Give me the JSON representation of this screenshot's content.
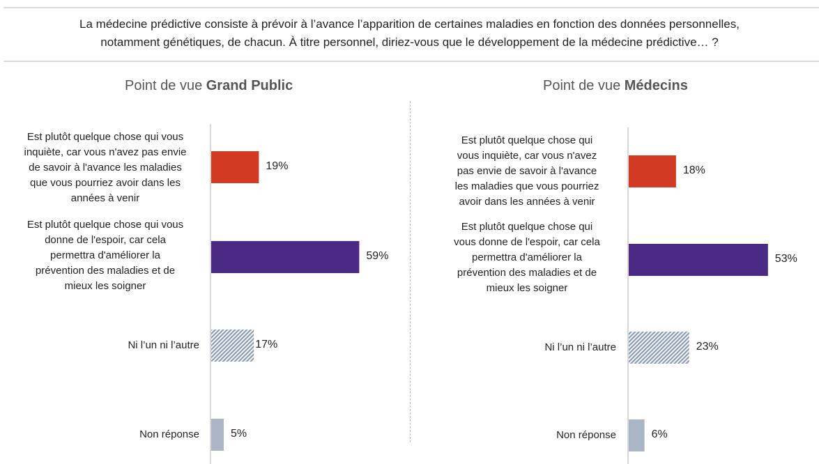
{
  "question": {
    "line1": "La médecine prédictive consiste à prévoir à l’avance l’apparition de certaines maladies en fonction des données personnelles,",
    "line2": "notamment génétiques, de chacun. À titre personnel, diriez-vous que le développement de la médecine prédictive… ?"
  },
  "panels": [
    {
      "title_prefix": "Point de vue ",
      "title_bold": "Grand Public"
    },
    {
      "title_prefix": "Point de vue ",
      "title_bold": "Médecins"
    }
  ],
  "colors": {
    "worry": "#d23a24",
    "hope": "#4b2a86",
    "neither": "#8a9ab4",
    "no_answer": "#aab6c6",
    "axis": "#d8d8d8"
  },
  "chart_data": [
    {
      "type": "bar",
      "orientation": "horizontal",
      "title": "Point de vue Grand Public",
      "categories": [
        "Est plutôt quelque chose qui vous inquiète, car vous n'avez pas envie de savoir à l'avance les maladies que vous pourriez avoir dans les années à venir",
        "Est plutôt quelque chose qui vous donne de l'espoir, car cela permettra d'améliorer la prévention des maladies et de mieux les soigner",
        "Ni l’un ni l’autre",
        "Non réponse"
      ],
      "category_lines": [
        [
          "Est plutôt quelque chose qui vous",
          "inquiète, car vous n'avez pas envie",
          "de savoir à l'avance les maladies",
          "que vous pourriez avoir dans les",
          "années à venir"
        ],
        [
          "Est plutôt quelque chose qui vous",
          "donne de l'espoir, car cela",
          "permettra d'améliorer la",
          "prévention des maladies et de",
          "mieux les soigner"
        ],
        [
          "Ni l’un ni l’autre"
        ],
        [
          "Non réponse"
        ]
      ],
      "values": [
        19,
        59,
        17,
        5
      ],
      "value_labels": [
        "19%",
        "59%",
        "17%",
        "5%"
      ],
      "patterns": [
        "solid",
        "solid",
        "hatched",
        "solid"
      ],
      "color_keys": [
        "worry",
        "hope",
        "neither",
        "no_answer"
      ],
      "unit": "%",
      "xlim": [
        0,
        100
      ],
      "grid": false,
      "legend": "none"
    },
    {
      "type": "bar",
      "orientation": "horizontal",
      "title": "Point de vue Médecins",
      "categories": [
        "Est plutôt quelque chose qui vous inquiète, car vous n'avez pas envie de savoir à l'avance les maladies que vous pourriez avoir dans les années à venir",
        "Est plutôt quelque chose qui vous donne de l'espoir, car cela permettra d'améliorer la prévention des maladies et de mieux les soigner",
        "Ni l’un ni l’autre",
        "Non réponse"
      ],
      "category_lines": [
        [
          "Est plutôt quelque chose qui",
          "vous inquiète, car vous n'avez",
          "pas envie de savoir à l'avance",
          "les maladies que vous pourriez",
          "avoir dans les années à venir"
        ],
        [
          "Est plutôt quelque chose qui",
          "vous donne de l'espoir, car cela",
          "permettra d'améliorer la",
          "prévention des maladies et de",
          "mieux les soigner"
        ],
        [
          "Ni l’un ni l’autre"
        ],
        [
          "Non réponse"
        ]
      ],
      "values": [
        18,
        53,
        23,
        6
      ],
      "value_labels": [
        "18%",
        "53%",
        "23%",
        "6%"
      ],
      "patterns": [
        "solid",
        "solid",
        "hatched",
        "solid"
      ],
      "color_keys": [
        "worry",
        "hope",
        "neither",
        "no_answer"
      ],
      "unit": "%",
      "xlim": [
        0,
        100
      ],
      "grid": false,
      "legend": "none"
    }
  ]
}
